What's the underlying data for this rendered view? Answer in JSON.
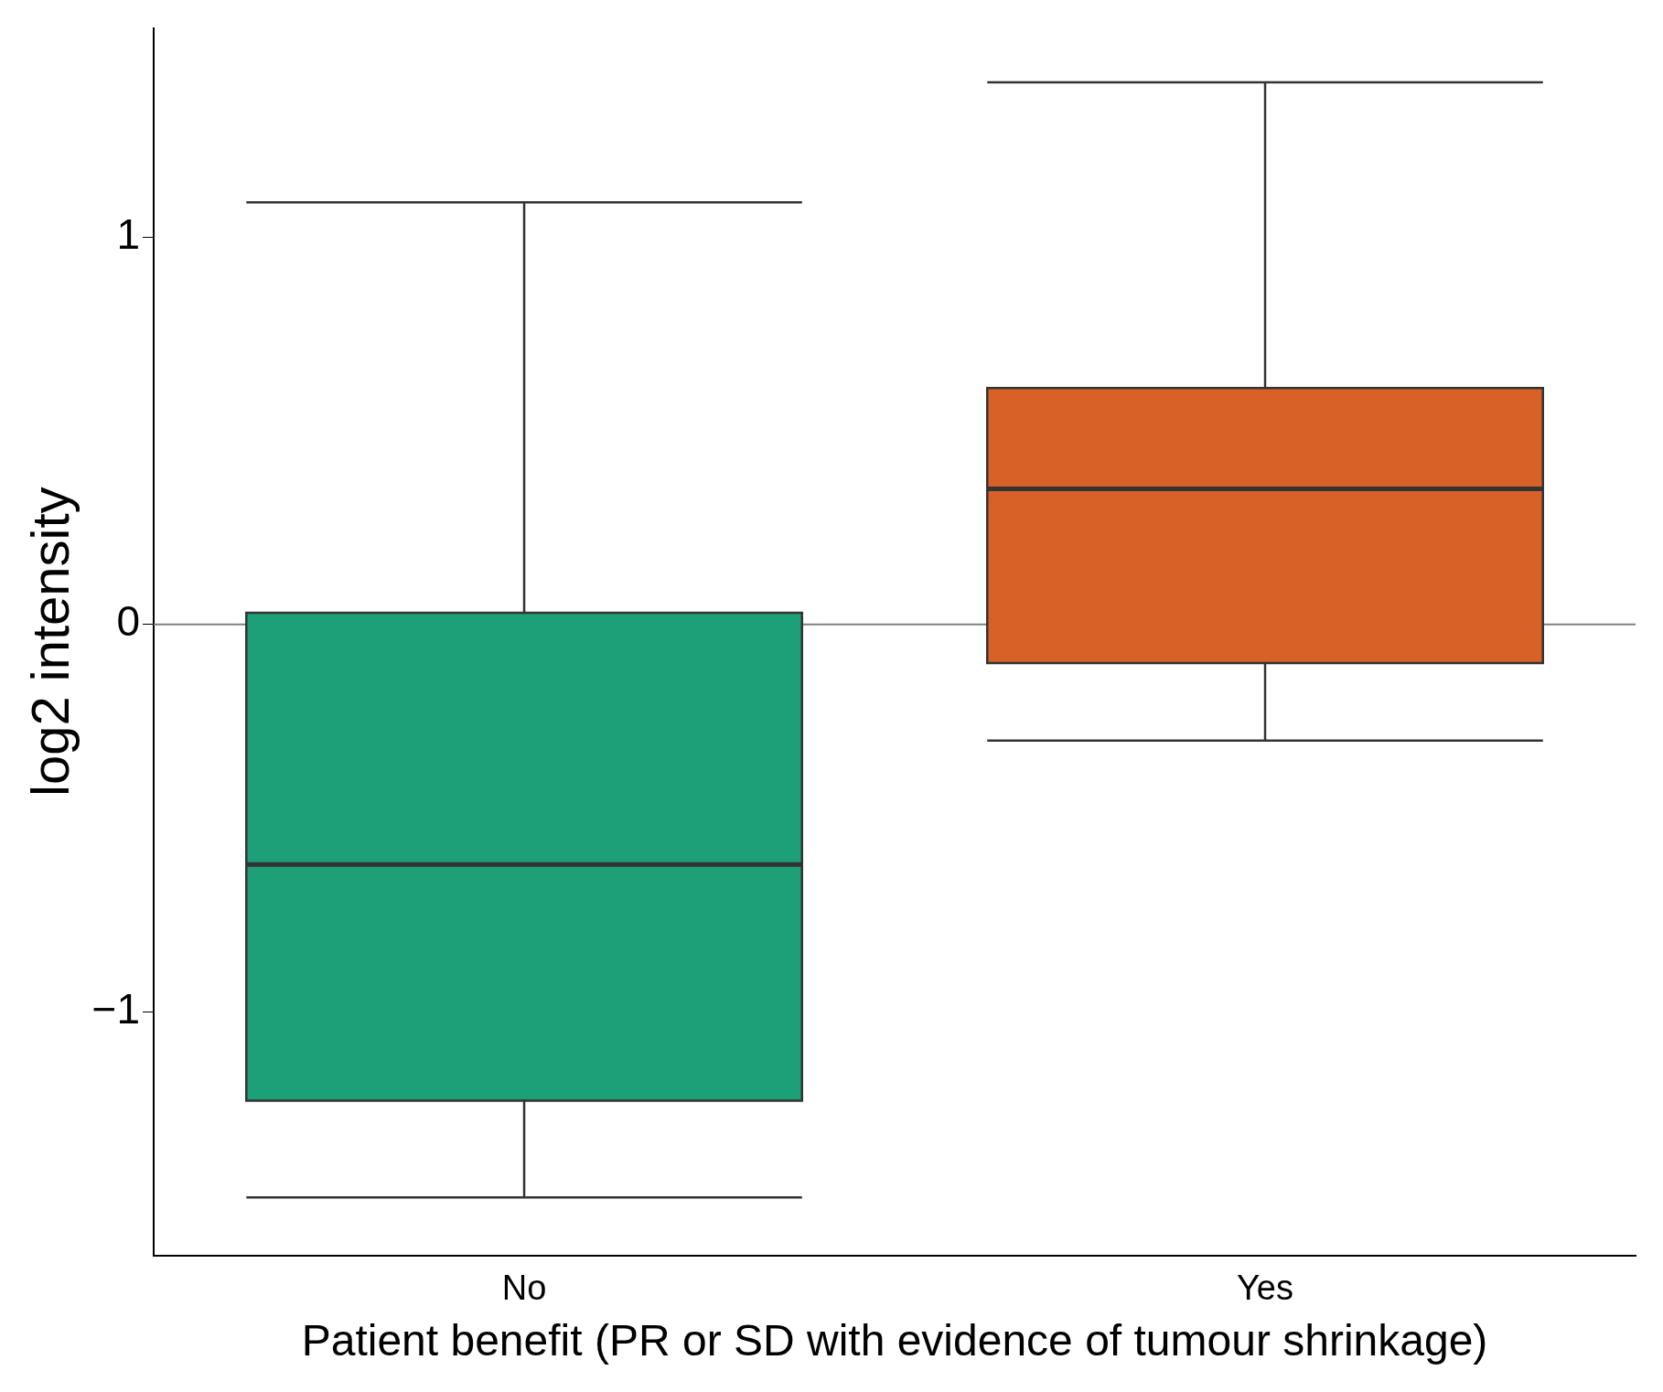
{
  "chart_data": {
    "type": "box",
    "xlabel": "Patient benefit (PR or SD with evidence of tumour shrinkage)",
    "ylabel": "log2 intensity",
    "categories": [
      "No",
      "Yes"
    ],
    "colors": [
      "#1d9f78",
      "#d86128"
    ],
    "boxes": [
      {
        "low": -1.48,
        "q1": -1.23,
        "median": -0.62,
        "q3": 0.03,
        "high": 1.09
      },
      {
        "low": -0.3,
        "q1": -0.1,
        "median": 0.35,
        "q3": 0.61,
        "high": 1.4
      }
    ],
    "ylim": [
      -1.63,
      1.54
    ],
    "yticks": [
      -1,
      0,
      1
    ],
    "ref_lines": [
      {
        "axis": "y",
        "value": 0,
        "color": "#808080"
      }
    ],
    "grid": false,
    "legend": false
  }
}
